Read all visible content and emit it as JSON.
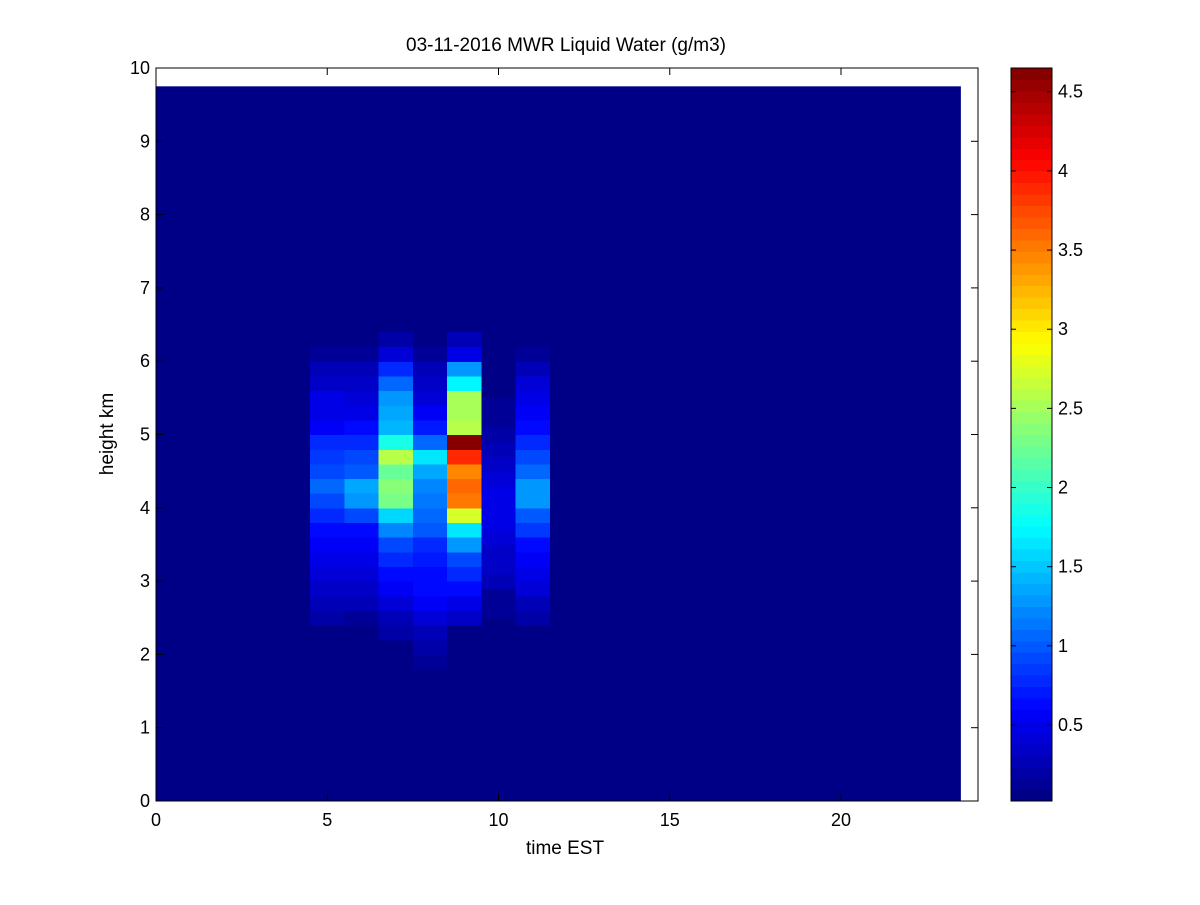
{
  "chart_data": {
    "type": "heatmap",
    "title": "03-11-2016 MWR Liquid Water (g/m3)",
    "xlabel": "time EST",
    "ylabel": "height km",
    "xlim": [
      0,
      24
    ],
    "ylim": [
      0,
      10
    ],
    "x_ticks": [
      0,
      5,
      10,
      15,
      20
    ],
    "y_ticks": [
      0,
      1,
      2,
      3,
      4,
      5,
      6,
      7,
      8,
      9,
      10
    ],
    "x_tick_labels": [
      "0",
      "5",
      "10",
      "15",
      "20"
    ],
    "y_tick_labels": [
      "0",
      "1",
      "2",
      "3",
      "4",
      "5",
      "6",
      "7",
      "8",
      "9",
      "10"
    ],
    "data_extent": {
      "x": [
        0,
        23.5
      ],
      "y": [
        0,
        9.75
      ]
    },
    "background_value": 0.02,
    "colorbar": {
      "range": [
        0.02,
        4.65
      ],
      "colormap": "jet",
      "ticks": [
        0.5,
        1,
        1.5,
        2,
        2.5,
        3,
        3.5,
        4,
        4.5
      ],
      "tick_labels": [
        "0.5",
        "1",
        "1.5",
        "2",
        "2.5",
        "3",
        "3.5",
        "4",
        "4.5"
      ]
    },
    "columns": [
      {
        "x": [
          0.5,
          1.5
        ],
        "profile": [
          [
            3.0,
            0.06
          ],
          [
            3.3,
            0.08
          ],
          [
            3.6,
            0.07
          ],
          [
            3.9,
            0.05
          ],
          [
            4.2,
            0.09
          ],
          [
            4.45,
            0.04
          ]
        ]
      },
      {
        "x": [
          2.5,
          4.5
        ],
        "profile": [
          [
            3.4,
            0.04
          ],
          [
            3.6,
            0.05
          ]
        ]
      },
      {
        "x": [
          4.5,
          5.5
        ],
        "profile": [
          [
            2.5,
            0.18
          ],
          [
            2.7,
            0.28
          ],
          [
            2.9,
            0.38
          ],
          [
            3.1,
            0.44
          ],
          [
            3.3,
            0.5
          ],
          [
            3.5,
            0.54
          ],
          [
            3.7,
            0.6
          ],
          [
            3.9,
            0.75
          ],
          [
            4.1,
            0.95
          ],
          [
            4.3,
            1.05
          ],
          [
            4.5,
            0.95
          ],
          [
            4.7,
            0.85
          ],
          [
            4.9,
            0.75
          ],
          [
            5.1,
            0.58
          ],
          [
            5.3,
            0.52
          ],
          [
            5.5,
            0.48
          ],
          [
            5.7,
            0.38
          ],
          [
            5.9,
            0.28
          ],
          [
            6.1,
            0.15
          ]
        ]
      },
      {
        "x": [
          5.5,
          6.5
        ],
        "profile": [
          [
            2.5,
            0.15
          ],
          [
            2.7,
            0.25
          ],
          [
            2.9,
            0.35
          ],
          [
            3.1,
            0.42
          ],
          [
            3.3,
            0.48
          ],
          [
            3.5,
            0.55
          ],
          [
            3.7,
            0.65
          ],
          [
            3.9,
            0.9
          ],
          [
            4.1,
            1.25
          ],
          [
            4.3,
            1.35
          ],
          [
            4.5,
            1.0
          ],
          [
            4.7,
            0.9
          ],
          [
            4.9,
            0.8
          ],
          [
            5.1,
            0.6
          ],
          [
            5.3,
            0.5
          ],
          [
            5.5,
            0.45
          ],
          [
            5.7,
            0.35
          ],
          [
            5.9,
            0.25
          ],
          [
            6.1,
            0.12
          ]
        ]
      },
      {
        "x": [
          6.5,
          7.5
        ],
        "profile": [
          [
            2.3,
            0.2
          ],
          [
            2.5,
            0.3
          ],
          [
            2.7,
            0.45
          ],
          [
            2.9,
            0.55
          ],
          [
            3.1,
            0.65
          ],
          [
            3.3,
            0.75
          ],
          [
            3.5,
            0.95
          ],
          [
            3.7,
            1.2
          ],
          [
            3.9,
            1.55
          ],
          [
            4.1,
            2.3
          ],
          [
            4.3,
            2.4
          ],
          [
            4.5,
            2.2
          ],
          [
            4.7,
            2.6
          ],
          [
            4.9,
            1.9
          ],
          [
            5.1,
            1.4
          ],
          [
            5.3,
            1.35
          ],
          [
            5.5,
            1.25
          ],
          [
            5.7,
            1.05
          ],
          [
            5.9,
            0.8
          ],
          [
            6.1,
            0.45
          ],
          [
            6.3,
            0.22
          ]
        ]
      },
      {
        "x": [
          7.5,
          8.5
        ],
        "profile": [
          [
            1.9,
            0.15
          ],
          [
            2.1,
            0.2
          ],
          [
            2.3,
            0.3
          ],
          [
            2.5,
            0.45
          ],
          [
            2.7,
            0.55
          ],
          [
            2.9,
            0.6
          ],
          [
            3.1,
            0.65
          ],
          [
            3.3,
            0.7
          ],
          [
            3.5,
            0.8
          ],
          [
            3.7,
            1.0
          ],
          [
            3.9,
            1.1
          ],
          [
            4.1,
            1.15
          ],
          [
            4.3,
            1.2
          ],
          [
            4.5,
            1.35
          ],
          [
            4.7,
            1.65
          ],
          [
            4.9,
            1.1
          ],
          [
            5.1,
            0.7
          ],
          [
            5.3,
            0.55
          ],
          [
            5.5,
            0.45
          ],
          [
            5.7,
            0.35
          ],
          [
            5.9,
            0.25
          ],
          [
            6.1,
            0.15
          ]
        ]
      },
      {
        "x": [
          8.5,
          9.5
        ],
        "profile": [
          [
            2.5,
            0.35
          ],
          [
            2.7,
            0.5
          ],
          [
            2.9,
            0.65
          ],
          [
            3.1,
            0.8
          ],
          [
            3.3,
            0.95
          ],
          [
            3.5,
            1.25
          ],
          [
            3.7,
            1.65
          ],
          [
            3.9,
            2.7
          ],
          [
            4.1,
            3.55
          ],
          [
            4.3,
            3.6
          ],
          [
            4.5,
            3.45
          ],
          [
            4.7,
            3.9
          ],
          [
            4.9,
            4.6
          ],
          [
            5.1,
            2.6
          ],
          [
            5.3,
            2.55
          ],
          [
            5.5,
            2.5
          ],
          [
            5.7,
            1.7
          ],
          [
            5.9,
            1.3
          ],
          [
            6.1,
            0.5
          ],
          [
            6.3,
            0.25
          ]
        ]
      },
      {
        "x": [
          9.5,
          10.5
        ],
        "profile": [
          [
            2.6,
            0.1
          ],
          [
            2.8,
            0.15
          ],
          [
            3.0,
            0.25
          ],
          [
            3.2,
            0.32
          ],
          [
            3.4,
            0.38
          ],
          [
            3.6,
            0.42
          ],
          [
            3.8,
            0.48
          ],
          [
            4.0,
            0.52
          ],
          [
            4.2,
            0.48
          ],
          [
            4.4,
            0.42
          ],
          [
            4.6,
            0.38
          ],
          [
            4.8,
            0.3
          ],
          [
            5.0,
            0.22
          ],
          [
            5.2,
            0.15
          ],
          [
            5.4,
            0.1
          ]
        ]
      },
      {
        "x": [
          10.5,
          11.5
        ],
        "profile": [
          [
            2.5,
            0.2
          ],
          [
            2.7,
            0.3
          ],
          [
            2.9,
            0.4
          ],
          [
            3.1,
            0.5
          ],
          [
            3.3,
            0.55
          ],
          [
            3.5,
            0.65
          ],
          [
            3.7,
            0.85
          ],
          [
            3.9,
            1.0
          ],
          [
            4.1,
            1.25
          ],
          [
            4.3,
            1.3
          ],
          [
            4.5,
            1.05
          ],
          [
            4.7,
            0.9
          ],
          [
            4.9,
            0.8
          ],
          [
            5.1,
            0.62
          ],
          [
            5.3,
            0.55
          ],
          [
            5.5,
            0.5
          ],
          [
            5.7,
            0.42
          ],
          [
            5.9,
            0.3
          ],
          [
            6.1,
            0.15
          ]
        ]
      }
    ]
  }
}
